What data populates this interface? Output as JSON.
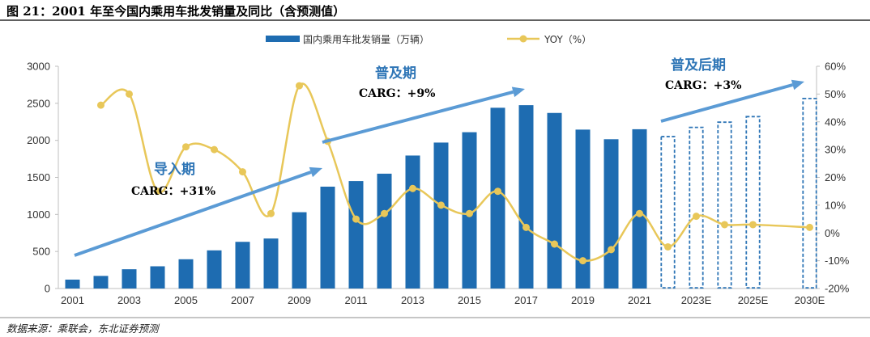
{
  "title": "图 21：2001 年至今国内乘用车批发销量及同比（含预测值）",
  "source": "数据来源：乘联会，东北证券预测",
  "colors": {
    "bar": "#1e6cb1",
    "forecast_bar_outline": "#2e75b6",
    "line": "#e8c759",
    "arrow": "#5b9bd5",
    "axis": "#bfbfbf",
    "phase_text": "#2e75b6"
  },
  "phases": [
    {
      "label": "导入期",
      "rate": "CARG：+31%"
    },
    {
      "label": "普及期",
      "rate": "CARG：+9%"
    },
    {
      "label": "普及后期",
      "rate": "CARG：+3%"
    }
  ],
  "chart_data": {
    "type": "bar",
    "title": "",
    "xlabel": "",
    "ylabel": "",
    "ylim": [
      0,
      3000
    ],
    "y2lim": [
      -20,
      60
    ],
    "yticks": [
      "0",
      "500",
      "1000",
      "1500",
      "2000",
      "2500",
      "3000"
    ],
    "y2ticks": [
      "-20%",
      "-10%",
      "0%",
      "10%",
      "20%",
      "30%",
      "40%",
      "50%",
      "60%"
    ],
    "xtick_labels": [
      "2001",
      "2003",
      "2005",
      "2007",
      "2009",
      "2011",
      "2013",
      "2015",
      "2017",
      "2019",
      "2021",
      "2023E",
      "2025E",
      "2030E"
    ],
    "legend_position": "top-center",
    "grid": false,
    "categories": [
      "2001",
      "2002",
      "2003",
      "2004",
      "2005",
      "2006",
      "2007",
      "2008",
      "2009",
      "2010",
      "2011",
      "2012",
      "2013",
      "2014",
      "2015",
      "2016",
      "2017",
      "2018",
      "2019",
      "2020",
      "2021",
      "2022E",
      "2023E",
      "2024E",
      "2025E",
      "2030E"
    ],
    "series": [
      {
        "name": "国内乘用车批发销量（万辆）",
        "type": "bar",
        "axis": "left",
        "values": [
          120,
          170,
          260,
          300,
          395,
          515,
          630,
          675,
          1030,
          1375,
          1450,
          1550,
          1795,
          1970,
          2110,
          2440,
          2475,
          2370,
          2145,
          2015,
          2150,
          2050,
          2175,
          2245,
          2320,
          2565
        ],
        "forecast_from": "2022E"
      },
      {
        "name": "YOY（%）",
        "type": "line",
        "axis": "right",
        "values": [
          null,
          46,
          50,
          15,
          31,
          30,
          22,
          7,
          53,
          33,
          5,
          7,
          16,
          10,
          7,
          15,
          2,
          -4,
          -10,
          -6,
          7,
          -5,
          6,
          3,
          3,
          2
        ]
      }
    ]
  }
}
